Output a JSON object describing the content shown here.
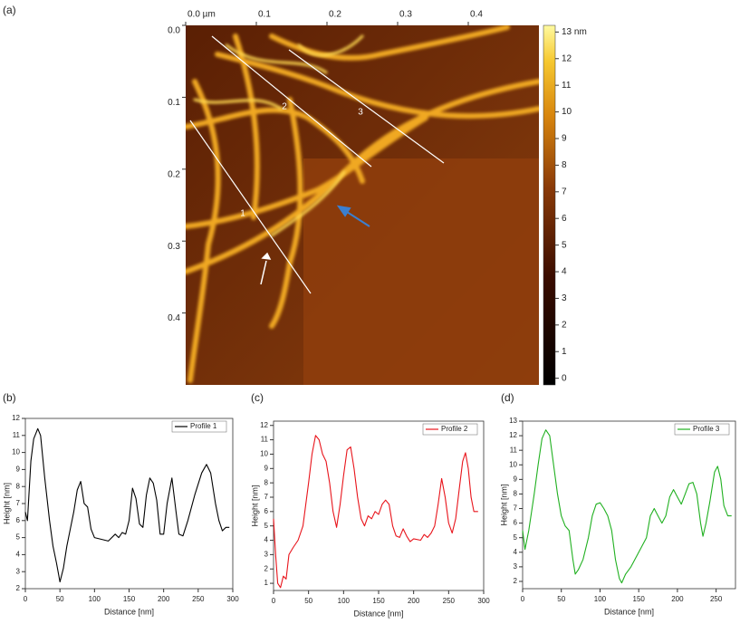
{
  "chart_data": [
    {
      "type": "image",
      "panel": "(a)",
      "xlim": [
        0,
        0.5
      ],
      "xticks": [
        {
          "value": 0,
          "label": "0.0 µm"
        },
        0.1,
        0.2,
        0.3,
        0.4
      ],
      "ylim": [
        0,
        0.5
      ],
      "yticks": [
        {
          "value": 0,
          "label": "0.0"
        },
        0.1,
        0.2,
        0.3,
        0.4
      ],
      "colorbar": {
        "clim": [
          -0.25,
          13.25
        ],
        "ticks": [
          0,
          1,
          2,
          3,
          4,
          5,
          6,
          7,
          8,
          9,
          10,
          11,
          12,
          {
            "value": 13,
            "label": "13 nm"
          }
        ]
      },
      "annotations": [
        "1",
        "2",
        "3"
      ]
    },
    {
      "type": "line",
      "panel": "(b)",
      "xlabel": "Distance [nm]",
      "ylabel": "Height [nm]",
      "xlim": [
        0,
        300
      ],
      "xticks": [
        0,
        50,
        100,
        150,
        200,
        250,
        300
      ],
      "ylim": [
        2,
        12
      ],
      "yticks": [
        2,
        3,
        4,
        5,
        6,
        7,
        8,
        9,
        10,
        11,
        12
      ],
      "legend": "upper right",
      "x": [
        0,
        3,
        8,
        12,
        18,
        22,
        28,
        35,
        40,
        45,
        50,
        55,
        60,
        65,
        70,
        75,
        80,
        85,
        90,
        95,
        100,
        110,
        120,
        130,
        135,
        140,
        145,
        150,
        155,
        160,
        165,
        170,
        175,
        180,
        185,
        190,
        195,
        200,
        205,
        212,
        218,
        222,
        228,
        235,
        245,
        255,
        262,
        268,
        275,
        280,
        285,
        290,
        295
      ],
      "series": [
        {
          "name": "Profile 1",
          "color": "#000000",
          "values": [
            6.5,
            6.0,
            9.5,
            10.8,
            11.4,
            11.0,
            8.5,
            6.0,
            4.5,
            3.5,
            2.4,
            3.2,
            4.5,
            5.5,
            6.5,
            7.8,
            8.3,
            7.0,
            6.8,
            5.5,
            5.0,
            4.9,
            4.8,
            5.2,
            5.0,
            5.3,
            5.2,
            6.0,
            7.9,
            7.3,
            5.8,
            5.6,
            7.5,
            8.5,
            8.2,
            7.2,
            5.2,
            5.2,
            7.0,
            8.5,
            6.5,
            5.2,
            5.1,
            6.0,
            7.5,
            8.8,
            9.3,
            8.8,
            7.0,
            6.0,
            5.4,
            5.6,
            5.6
          ]
        }
      ]
    },
    {
      "type": "line",
      "panel": "(c)",
      "xlabel": "Distance [nm]",
      "ylabel": "Height [nm]",
      "xlim": [
        0,
        300
      ],
      "xticks": [
        0,
        50,
        100,
        150,
        200,
        250,
        300
      ],
      "ylim": [
        0.5,
        12.3
      ],
      "yticks": [
        1,
        2,
        3,
        4,
        5,
        6,
        7,
        8,
        9,
        10,
        11,
        12
      ],
      "legend": "upper right",
      "x": [
        0,
        3,
        6,
        10,
        14,
        18,
        22,
        28,
        35,
        42,
        50,
        55,
        60,
        65,
        70,
        75,
        80,
        85,
        90,
        95,
        100,
        105,
        110,
        115,
        120,
        125,
        130,
        135,
        140,
        145,
        150,
        155,
        160,
        165,
        170,
        175,
        180,
        185,
        190,
        195,
        200,
        210,
        215,
        220,
        225,
        230,
        235,
        240,
        245,
        250,
        255,
        260,
        265,
        270,
        274,
        278,
        282,
        286,
        292
      ],
      "series": [
        {
          "name": "Profile 2",
          "color": "#e8141b",
          "values": [
            5.5,
            3.0,
            1.0,
            0.7,
            1.5,
            1.3,
            3.0,
            3.5,
            4.0,
            5.0,
            8.0,
            10.0,
            11.3,
            11.0,
            10.0,
            9.5,
            8.0,
            6.0,
            4.9,
            6.5,
            8.5,
            10.3,
            10.5,
            9.0,
            7.0,
            5.5,
            5.0,
            5.7,
            5.5,
            6.0,
            5.8,
            6.5,
            6.8,
            6.5,
            5.0,
            4.3,
            4.2,
            4.8,
            4.3,
            3.9,
            4.1,
            4.0,
            4.4,
            4.2,
            4.5,
            5.0,
            6.5,
            8.3,
            7.0,
            5.2,
            4.5,
            5.5,
            7.5,
            9.5,
            10.1,
            9.0,
            7.0,
            6.0,
            6.0
          ]
        }
      ]
    },
    {
      "type": "line",
      "panel": "(d)",
      "xlabel": "Distance [nm]",
      "ylabel": "Height [nm]",
      "xlim": [
        0,
        275
      ],
      "xticks": [
        0,
        50,
        100,
        150,
        200,
        250
      ],
      "ylim": [
        1.5,
        13
      ],
      "yticks": [
        2,
        3,
        4,
        5,
        6,
        7,
        8,
        9,
        10,
        11,
        12,
        13
      ],
      "legend": "upper right",
      "x": [
        0,
        3,
        8,
        15,
        20,
        25,
        30,
        35,
        40,
        45,
        50,
        55,
        60,
        65,
        68,
        72,
        78,
        85,
        90,
        95,
        100,
        105,
        110,
        115,
        120,
        125,
        128,
        133,
        140,
        150,
        160,
        165,
        170,
        175,
        180,
        185,
        190,
        195,
        200,
        205,
        210,
        215,
        220,
        225,
        230,
        233,
        237,
        242,
        248,
        252,
        256,
        260,
        265,
        270
      ],
      "series": [
        {
          "name": "Profile 3",
          "color": "#20b020",
          "values": [
            5.5,
            4.2,
            5.5,
            8.0,
            10.0,
            11.8,
            12.4,
            12.0,
            10.0,
            8.0,
            6.5,
            5.8,
            5.5,
            3.5,
            2.5,
            2.8,
            3.5,
            5.0,
            6.5,
            7.3,
            7.4,
            7.0,
            6.5,
            5.5,
            3.5,
            2.2,
            1.9,
            2.5,
            3.0,
            4.0,
            5.0,
            6.5,
            7.0,
            6.5,
            6.0,
            6.5,
            7.8,
            8.3,
            7.8,
            7.3,
            8.0,
            8.7,
            8.8,
            8.0,
            6.0,
            5.1,
            6.0,
            7.5,
            9.5,
            9.9,
            9.0,
            7.2,
            6.5,
            6.5
          ]
        }
      ]
    }
  ]
}
